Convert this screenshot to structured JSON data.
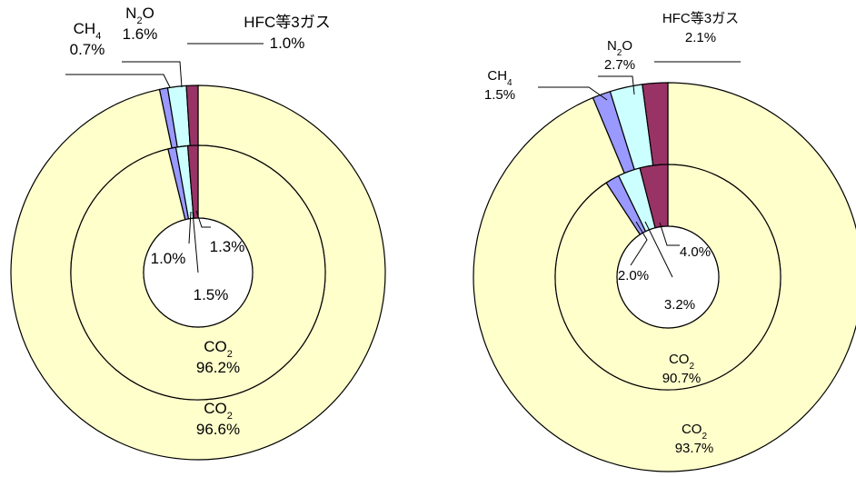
{
  "chart_data": [
    {
      "type": "pie",
      "categories": [
        "CO2",
        "CH4",
        "N2O",
        "HFC等3ガス"
      ],
      "series": [
        {
          "values": [
            96.6,
            0.7,
            1.6,
            1.0
          ]
        },
        {
          "values": [
            96.2,
            1.0,
            1.5,
            1.3
          ]
        }
      ],
      "labels": {
        "outer": [
          {
            "pre": "CH",
            "sub": "4",
            "post": "",
            "value": "0.7%"
          },
          {
            "pre": "N",
            "sub": "2",
            "post": "O",
            "value": "1.6%"
          },
          {
            "pre": "HFC等3ガス",
            "sub": "",
            "post": "",
            "value": "1.0%"
          },
          {
            "pre": "CO",
            "sub": "2",
            "post": "",
            "value": "96.6%"
          }
        ],
        "middle": [
          {
            "pre": "CO",
            "sub": "2",
            "post": "",
            "value": "96.2%"
          }
        ],
        "inner": [
          "1.0%",
          "1.3%",
          "1.5%"
        ]
      },
      "colors": [
        "#ffffcc",
        "#9999ff",
        "#ccffff",
        "#993366"
      ]
    },
    {
      "type": "pie",
      "categories": [
        "CO2",
        "CH4",
        "N2O",
        "HFC等3ガス"
      ],
      "series": [
        {
          "values": [
            93.7,
            1.5,
            2.7,
            2.1
          ]
        },
        {
          "values": [
            90.7,
            2.0,
            3.2,
            4.0
          ]
        }
      ],
      "labels": {
        "outer": [
          {
            "pre": "CH",
            "sub": "4",
            "post": "",
            "value": "1.5%"
          },
          {
            "pre": "N",
            "sub": "2",
            "post": "O",
            "value": "2.7%"
          },
          {
            "pre": "HFC等3ガス",
            "sub": "",
            "post": "",
            "value": "2.1%"
          },
          {
            "pre": "CO",
            "sub": "2",
            "post": "",
            "value": "93.7%"
          }
        ],
        "middle": [
          {
            "pre": "CO",
            "sub": "2",
            "post": "",
            "value": "90.7%"
          }
        ],
        "inner": [
          "2.0%",
          "4.0%",
          "3.2%"
        ]
      },
      "colors": [
        "#ffffcc",
        "#9999ff",
        "#ccffff",
        "#993366"
      ]
    }
  ]
}
